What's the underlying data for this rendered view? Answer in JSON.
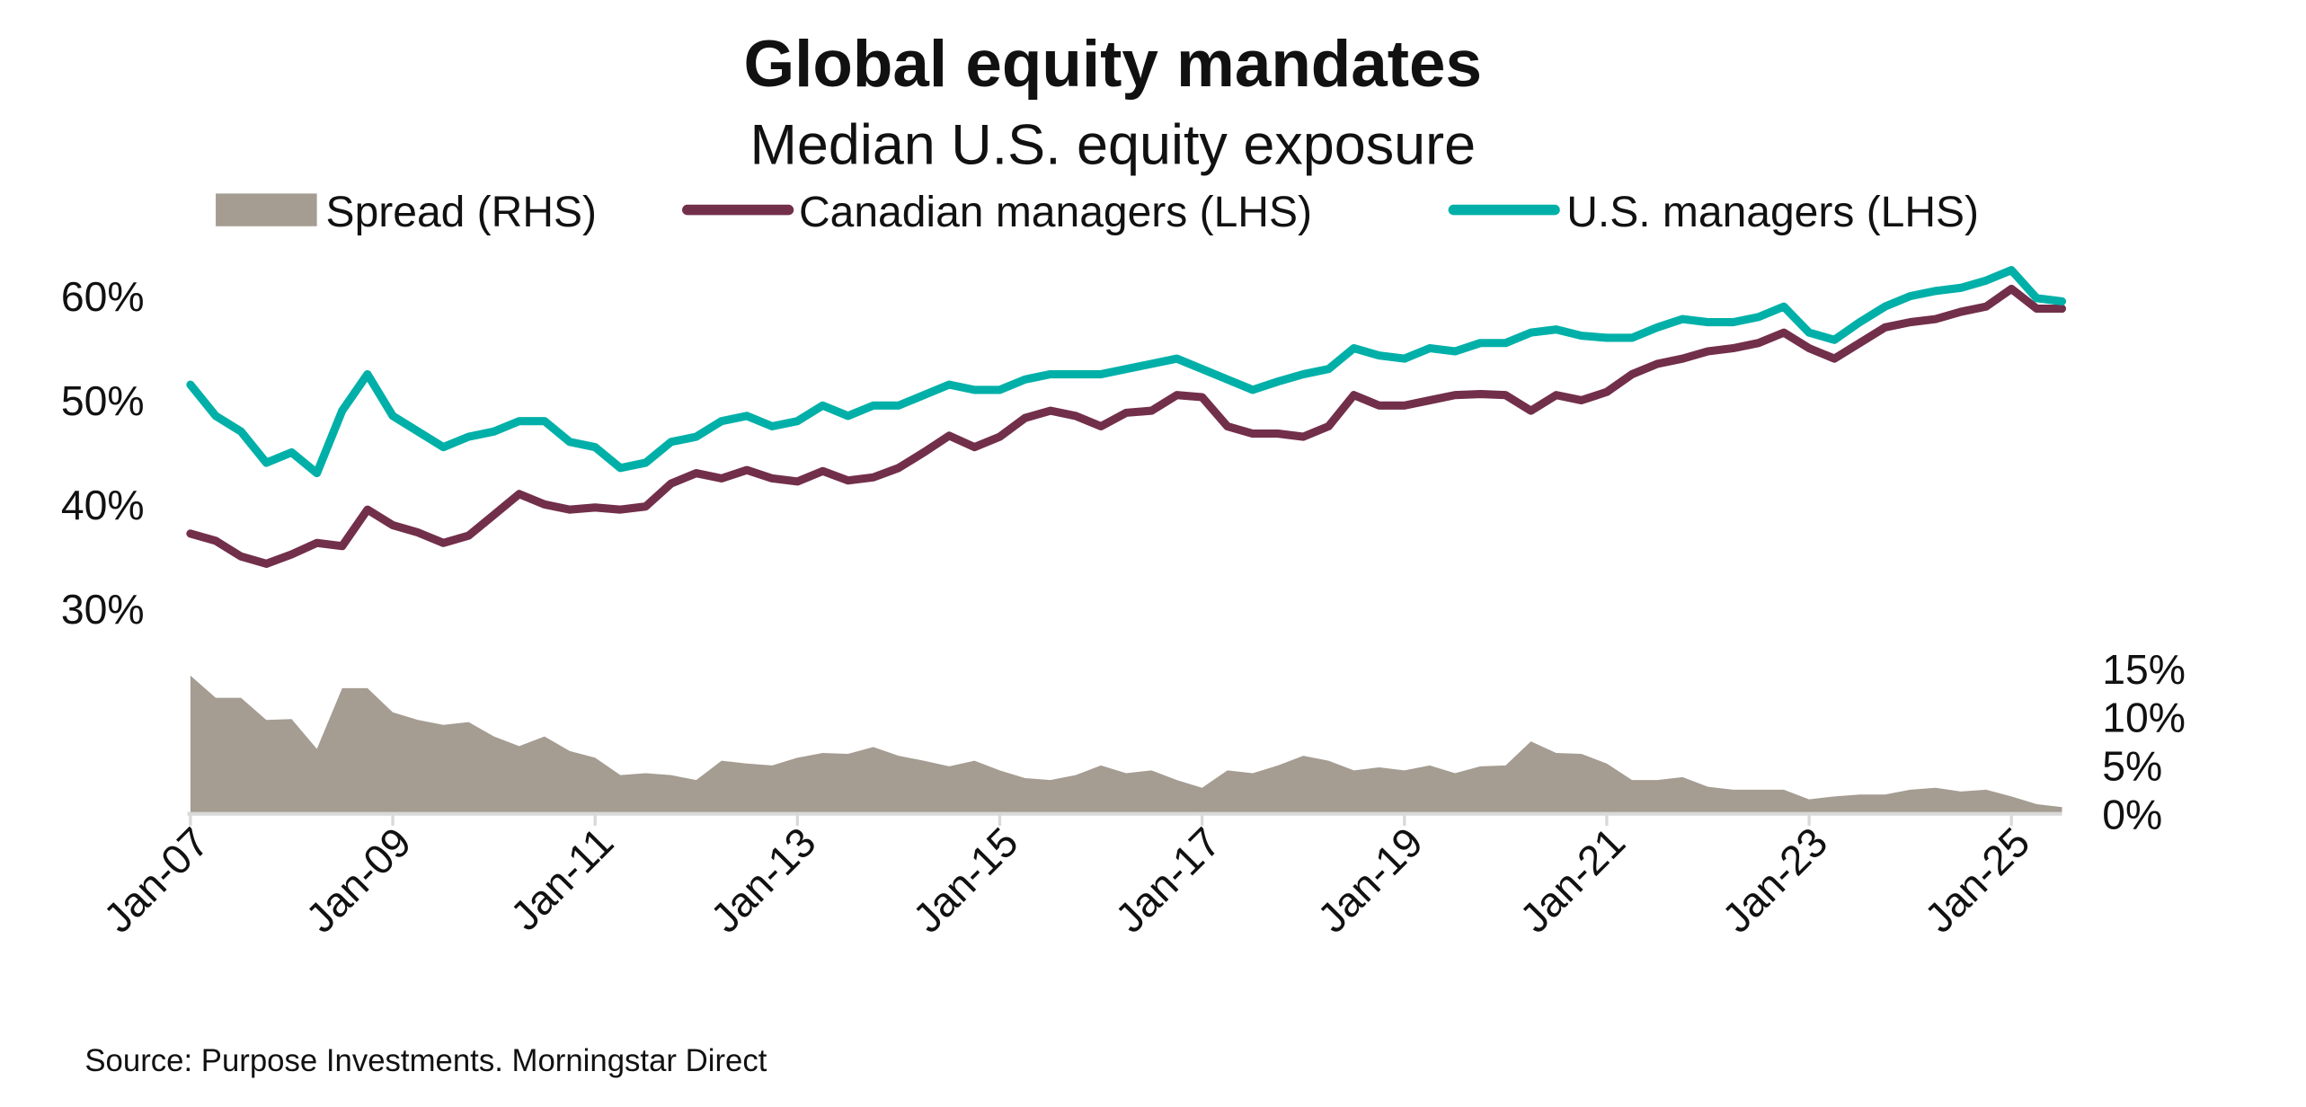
{
  "chart_data": {
    "type": "line",
    "title": "Global equity mandates",
    "subtitle": "Median U.S. equity exposure",
    "source": "Source: Purpose Investments. Morningstar Direct",
    "legend_position": "top",
    "grid": false,
    "colors": {
      "spread": "#A59C92",
      "canadian": "#722F4A",
      "us": "#00B0A8"
    },
    "x_ticks": [
      "Jan-07",
      "Jan-09",
      "Jan-11",
      "Jan-13",
      "Jan-15",
      "Jan-17",
      "Jan-19",
      "Jan-21",
      "Jan-23",
      "Jan-25"
    ],
    "y_left": {
      "ticks": [
        "30%",
        "40%",
        "50%",
        "60%"
      ],
      "range": [
        25,
        62
      ]
    },
    "y_right": {
      "ticks": [
        "0%",
        "5%",
        "10%",
        "15%"
      ],
      "range": [
        0,
        15
      ]
    },
    "dates": [
      "2007-01",
      "2007-04",
      "2007-07",
      "2007-10",
      "2008-01",
      "2008-04",
      "2008-07",
      "2008-10",
      "2009-01",
      "2009-04",
      "2009-07",
      "2009-10",
      "2010-01",
      "2010-04",
      "2010-07",
      "2010-10",
      "2011-01",
      "2011-04",
      "2011-07",
      "2011-10",
      "2012-01",
      "2012-04",
      "2012-07",
      "2012-10",
      "2013-01",
      "2013-04",
      "2013-07",
      "2013-10",
      "2014-01",
      "2014-04",
      "2014-07",
      "2014-10",
      "2015-01",
      "2015-04",
      "2015-07",
      "2015-10",
      "2016-01",
      "2016-04",
      "2016-07",
      "2016-10",
      "2017-01",
      "2017-04",
      "2017-07",
      "2017-10",
      "2018-01",
      "2018-04",
      "2018-07",
      "2018-10",
      "2019-01",
      "2019-04",
      "2019-07",
      "2019-10",
      "2020-01",
      "2020-04",
      "2020-07",
      "2020-10",
      "2021-01",
      "2021-04",
      "2021-07",
      "2021-10",
      "2022-01",
      "2022-04",
      "2022-07",
      "2022-10",
      "2023-01",
      "2023-04",
      "2023-07",
      "2023-10",
      "2024-01",
      "2024-04",
      "2024-07",
      "2024-10",
      "2025-01",
      "2025-04",
      "2025-07"
    ],
    "series": [
      {
        "name": "Spread (RHS)",
        "axis": "right",
        "kind": "area",
        "values": [
          14.3,
          12,
          12,
          9.7,
          9.8,
          6.7,
          13,
          13,
          10.5,
          9.7,
          9.2,
          9.5,
          8,
          7,
          8,
          6.5,
          5.8,
          4,
          4.2,
          4,
          3.5,
          5.5,
          5.2,
          5,
          5.8,
          6.3,
          6.2,
          6.9,
          6,
          5.5,
          4.9,
          5.5,
          4.5,
          3.7,
          3.5,
          4,
          5,
          4.2,
          4.5,
          3.5,
          2.7,
          4.5,
          4.2,
          5,
          6,
          5.5,
          4.5,
          4.8,
          4.5,
          5,
          4.2,
          4.9,
          5,
          7.5,
          6.3,
          6.2,
          5.2,
          3.5,
          3.5,
          3.8,
          2.8,
          2.5,
          2.5,
          2.5,
          1.5,
          1.8,
          2,
          2,
          2.5,
          2.7,
          2.3,
          2.5,
          1.8,
          1,
          0.7
        ]
      },
      {
        "name": "Canadian managers (LHS)",
        "axis": "left",
        "kind": "line",
        "values": [
          37.2,
          36.5,
          35,
          34.3,
          35.2,
          36.3,
          36,
          39.5,
          38,
          37.3,
          36.3,
          37,
          39,
          41,
          40,
          39.5,
          39.7,
          39.5,
          39.8,
          42,
          43,
          42.5,
          43.3,
          42.5,
          42.2,
          43.2,
          42.3,
          42.6,
          43.5,
          45,
          46.6,
          45.5,
          46.5,
          48.3,
          49,
          48.5,
          47.5,
          48.8,
          49,
          50.5,
          50.3,
          47.5,
          46.8,
          46.8,
          46.5,
          47.5,
          50.5,
          49.5,
          49.5,
          50,
          50.5,
          50.6,
          50.5,
          49,
          50.5,
          50,
          50.8,
          52.5,
          53.5,
          54,
          54.7,
          55,
          55.5,
          56.5,
          55,
          54,
          55.5,
          57,
          57.5,
          57.8,
          58.5,
          59,
          60.7,
          58.8,
          58.8
        ]
      },
      {
        "name": "U.S. managers (LHS)",
        "axis": "left",
        "kind": "line",
        "values": [
          51.5,
          48.5,
          47,
          44,
          45,
          43,
          49,
          52.5,
          48.5,
          47,
          45.5,
          46.5,
          47,
          48,
          48,
          46,
          45.5,
          43.5,
          44,
          46,
          46.5,
          48,
          48.5,
          47.5,
          48,
          49.5,
          48.5,
          49.5,
          49.5,
          50.5,
          51.5,
          51,
          51,
          52,
          52.5,
          52.5,
          52.5,
          53,
          53.5,
          54,
          53,
          52,
          51,
          51.8,
          52.5,
          53,
          55,
          54.3,
          54,
          55,
          54.7,
          55.5,
          55.5,
          56.5,
          56.8,
          56.2,
          56,
          56,
          57,
          57.8,
          57.5,
          57.5,
          58,
          59,
          56.5,
          55.8,
          57.5,
          59,
          60,
          60.5,
          60.8,
          61.5,
          62.5,
          59.8,
          59.5
        ]
      }
    ]
  }
}
